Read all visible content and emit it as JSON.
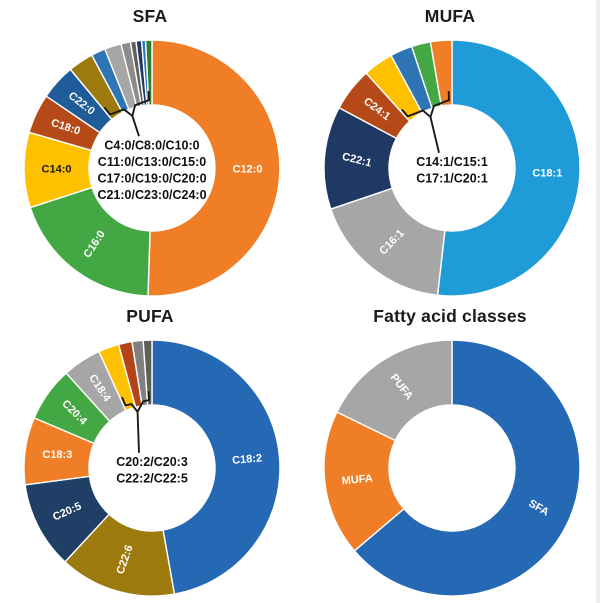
{
  "figure_caption_visible": false,
  "chart_data": [
    {
      "type": "pie",
      "subtype": "donut",
      "title": "SFA",
      "hole_ratio": 0.49,
      "legend": "none",
      "center_group_label": {
        "lines": [
          "C4:0/C8:0/C10:0",
          "C11:0/C13:0/C15:0",
          "C17:0/C19:0/C20:0",
          "C21:0/C23:0/C24:0"
        ],
        "applies_to": "minor unlabeled slices indicated by bracket callout"
      },
      "slices": [
        {
          "name": "C12:0",
          "pct": 50.5,
          "color": "#F07E26",
          "label_color": "#ffffff",
          "label_rot": 0
        },
        {
          "name": "C16:0",
          "pct": 19.5,
          "color": "#43A843",
          "label_color": "#ffffff",
          "label_rot": -57
        },
        {
          "name": "C14:0",
          "pct": 9.5,
          "color": "#FFC000",
          "label_color": "#1a1a1a",
          "label_rot": 0
        },
        {
          "name": "C18:0",
          "pct": 5.0,
          "color": "#B54A18",
          "label_color": "#ffffff",
          "label_rot": 18
        },
        {
          "name": "C22:0",
          "pct": 4.5,
          "color": "#1F5C99",
          "label_color": "#ffffff",
          "label_rot": 38
        },
        {
          "name": "",
          "pct": 3.2,
          "color": "#9C7A0E",
          "minor": true
        },
        {
          "name": "",
          "pct": 1.8,
          "color": "#2E75B6",
          "minor": true
        },
        {
          "name": "",
          "pct": 2.1,
          "color": "#A6A6A6",
          "minor": true
        },
        {
          "name": "",
          "pct": 1.2,
          "color": "#8C8C8C",
          "minor": true
        },
        {
          "name": "",
          "pct": 0.7,
          "color": "#5F5F5F",
          "minor": true
        },
        {
          "name": "",
          "pct": 0.7,
          "color": "#1F3864",
          "minor": true
        },
        {
          "name": "",
          "pct": 0.5,
          "color": "#2E75B6",
          "minor": true
        },
        {
          "name": "",
          "pct": 0.8,
          "color": "#2E7D32",
          "minor": true
        }
      ]
    },
    {
      "type": "pie",
      "subtype": "donut",
      "title": "MUFA",
      "hole_ratio": 0.49,
      "legend": "none",
      "center_group_label": {
        "lines": [
          "C14:1/C15:1",
          "C17:1/C20:1"
        ],
        "applies_to": "minor unlabeled slices indicated by bracket callout"
      },
      "slices": [
        {
          "name": "C18:1",
          "pct": 51.8,
          "color": "#1F9BD8",
          "label_color": "#ffffff",
          "label_rot": 0
        },
        {
          "name": "C16:1",
          "pct": 18.0,
          "color": "#A6A6A6",
          "label_color": "#ffffff",
          "label_rot": -46
        },
        {
          "name": "C22:1",
          "pct": 13.0,
          "color": "#1F3864",
          "label_color": "#ffffff",
          "label_rot": 14
        },
        {
          "name": "C24:1",
          "pct": 5.5,
          "color": "#B54A18",
          "label_color": "#ffffff",
          "label_rot": 37
        },
        {
          "name": "",
          "pct": 3.8,
          "color": "#FFC000",
          "minor": true
        },
        {
          "name": "",
          "pct": 2.8,
          "color": "#2E75B6",
          "minor": true
        },
        {
          "name": "",
          "pct": 2.4,
          "color": "#43A843",
          "minor": true
        },
        {
          "name": "",
          "pct": 2.7,
          "color": "#F07E26",
          "minor": true
        }
      ]
    },
    {
      "type": "pie",
      "subtype": "donut",
      "title": "PUFA",
      "hole_ratio": 0.49,
      "legend": "none",
      "center_group_label": {
        "lines": [
          "C20:2/C20:3",
          "C22:2/C22:5"
        ],
        "applies_to": "minor unlabeled slices indicated by bracket callout"
      },
      "slices": [
        {
          "name": "C18:2",
          "pct": 47.2,
          "color": "#2569B5",
          "label_color": "#ffffff",
          "label_rot": -5
        },
        {
          "name": "C22:6",
          "pct": 14.7,
          "color": "#9C7A0E",
          "label_color": "#ffffff",
          "label_rot": -71
        },
        {
          "name": "C20:5",
          "pct": 11.0,
          "color": "#1F3F66",
          "label_color": "#ffffff",
          "label_rot": -24
        },
        {
          "name": "C18:3",
          "pct": 8.5,
          "color": "#F07E26",
          "label_color": "#ffffff",
          "label_rot": 0
        },
        {
          "name": "C20:4",
          "pct": 6.9,
          "color": "#43A843",
          "label_color": "#ffffff",
          "label_rot": 45
        },
        {
          "name": "C18:4",
          "pct": 4.9,
          "color": "#A6A6A6",
          "label_color": "#ffffff",
          "label_rot": 56
        },
        {
          "name": "",
          "pct": 2.6,
          "color": "#FFC000",
          "minor": true
        },
        {
          "name": "",
          "pct": 1.7,
          "color": "#B3441A",
          "minor": true
        },
        {
          "name": "",
          "pct": 1.4,
          "color": "#808080",
          "minor": true
        },
        {
          "name": "",
          "pct": 1.1,
          "color": "#5F5F5F",
          "minor": true
        }
      ]
    },
    {
      "type": "pie",
      "subtype": "donut",
      "title": "Fatty acid classes",
      "hole_ratio": 0.49,
      "legend": "none",
      "center_group_label": {
        "lines": [],
        "applies_to": ""
      },
      "slices": [
        {
          "name": "SFA",
          "pct": 63.8,
          "color": "#2569B5",
          "label_color": "#ffffff",
          "label_rot": 30
        },
        {
          "name": "MUFA",
          "pct": 18.4,
          "color": "#F07E26",
          "label_color": "#ffffff",
          "label_rot": -5
        },
        {
          "name": "PUFA",
          "pct": 17.8,
          "color": "#A6A6A6",
          "label_color": "#ffffff",
          "label_rot": 52
        }
      ]
    }
  ],
  "style": {
    "slice_gap_color": "#ffffff",
    "bracket_color": "#1a1a1a",
    "title_color": "#1a1a1a"
  }
}
